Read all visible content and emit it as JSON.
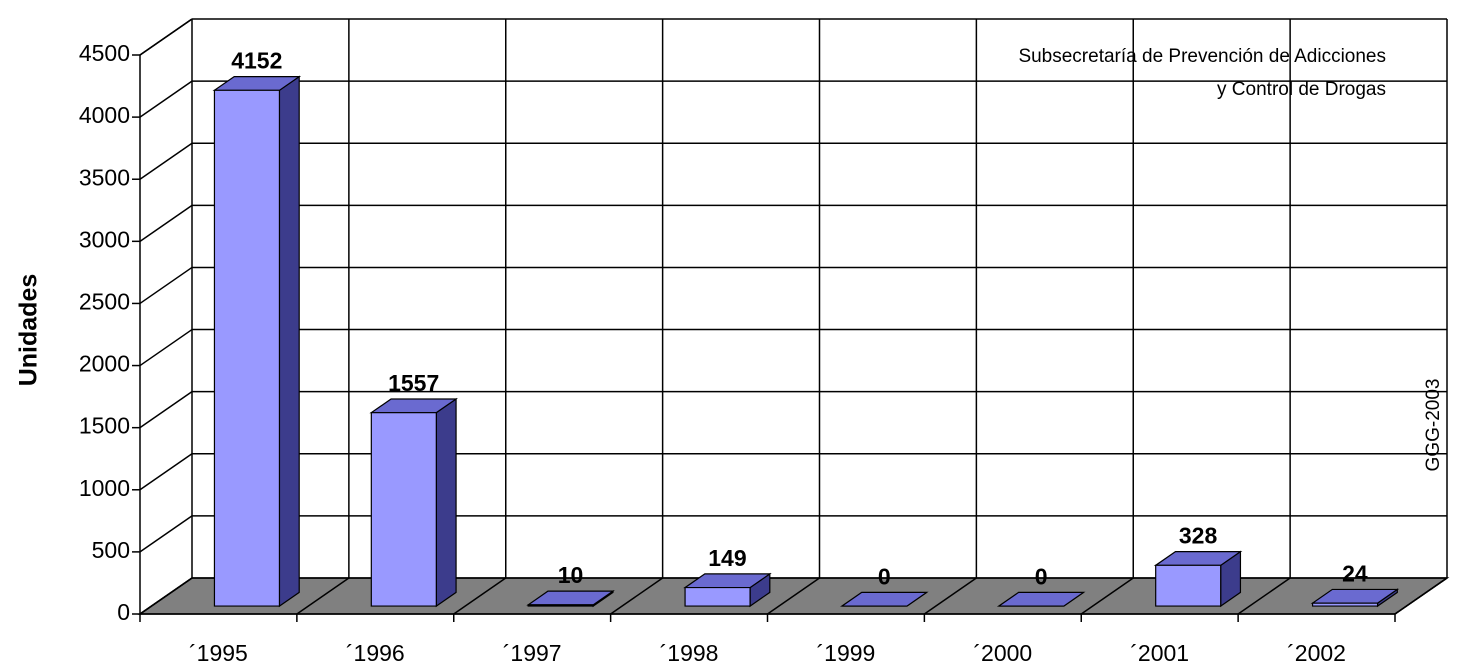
{
  "chart_data": {
    "type": "bar3d",
    "y_axis_label": "Unidades",
    "annotations": [
      "Subsecretaría de Prevención de Adicciones",
      "y Control de Drogas",
      "GGG-2003"
    ],
    "categories": [
      "´1995",
      "´1996",
      "´1997",
      "´1998",
      "´1999",
      "´2000",
      "´2001",
      "´2002"
    ],
    "values": [
      4152,
      1557,
      10,
      149,
      0,
      0,
      328,
      24
    ],
    "color": "#9999ff",
    "ylim": [
      0,
      4500
    ],
    "yticks": [
      0,
      500,
      1000,
      1500,
      2000,
      2500,
      3000,
      3500,
      4000,
      4500
    ],
    "grid": true
  }
}
